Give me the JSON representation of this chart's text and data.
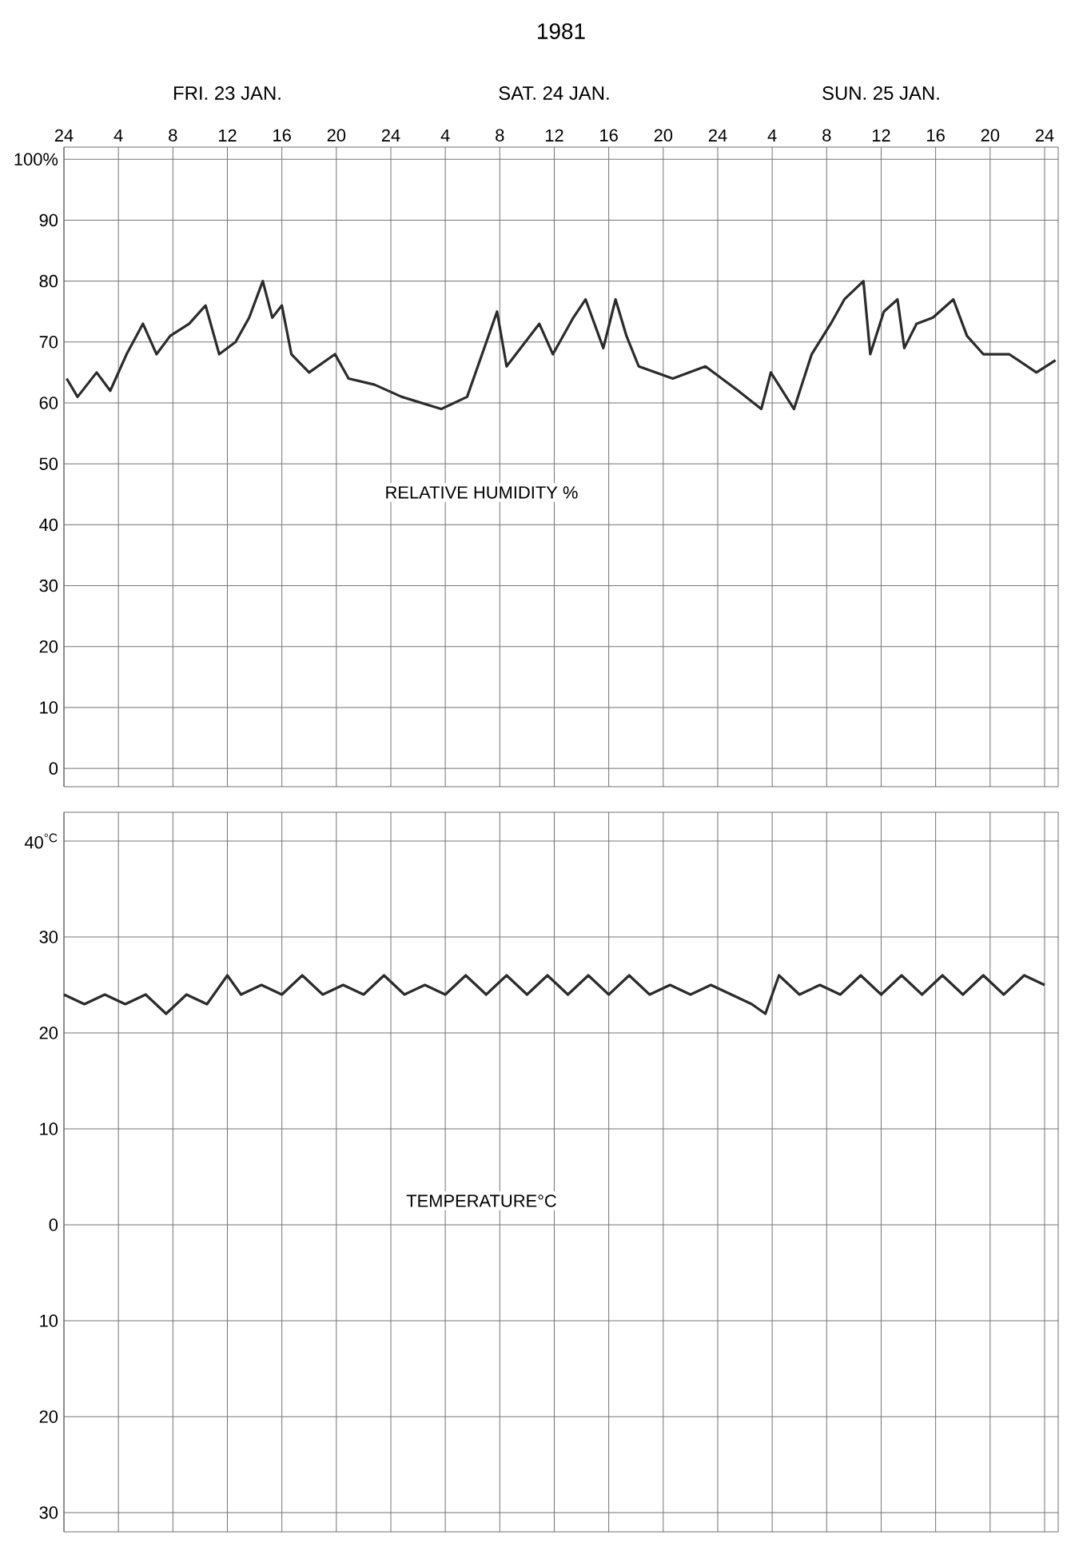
{
  "chart_data": [
    {
      "type": "line",
      "title": "1981",
      "annotations": [
        "RELATIVE HUMIDITY %"
      ],
      "xlim": [
        "1981-01-23T00:00",
        "1981-01-26T01:00"
      ],
      "xticks": [
        {
          "value": "1981-01-23T00:00",
          "label": "24"
        },
        {
          "value": "1981-01-23T04:00",
          "label": "4"
        },
        {
          "value": "1981-01-23T08:00",
          "label": "8"
        },
        {
          "value": "1981-01-23T12:00",
          "label": "12"
        },
        {
          "value": "1981-01-23T16:00",
          "label": "16"
        },
        {
          "value": "1981-01-23T20:00",
          "label": "20"
        },
        {
          "value": "1981-01-24T00:00",
          "label": "24"
        },
        {
          "value": "1981-01-24T04:00",
          "label": "4"
        },
        {
          "value": "1981-01-24T08:00",
          "label": "8"
        },
        {
          "value": "1981-01-24T12:00",
          "label": "12"
        },
        {
          "value": "1981-01-24T16:00",
          "label": "16"
        },
        {
          "value": "1981-01-24T20:00",
          "label": "20"
        },
        {
          "value": "1981-01-25T00:00",
          "label": "24"
        },
        {
          "value": "1981-01-25T04:00",
          "label": "4"
        },
        {
          "value": "1981-01-25T08:00",
          "label": "8"
        },
        {
          "value": "1981-01-25T12:00",
          "label": "12"
        },
        {
          "value": "1981-01-25T16:00",
          "label": "16"
        },
        {
          "value": "1981-01-25T20:00",
          "label": "20"
        },
        {
          "value": "1981-01-26T00:00",
          "label": "24"
        }
      ],
      "x2lim": [
        "1981-01-23T00:00",
        "1981-01-26T01:00"
      ],
      "x2ticks": [
        {
          "value": "1981-01-23T12:00",
          "label": "FRI. 23  JAN."
        },
        {
          "value": "1981-01-24T12:00",
          "label": "SAT. 24  JAN."
        },
        {
          "value": "1981-01-25T12:00",
          "label": "SUN. 25  JAN."
        }
      ],
      "ylim": [
        -3,
        102
      ],
      "yticks": [
        0,
        10,
        20,
        30,
        40,
        50,
        60,
        70,
        80,
        90,
        {
          "value": 100,
          "label": "100%"
        }
      ],
      "grid": true,
      "line_style": "solid",
      "series": [
        {
          "color": "#2b2b2b",
          "x": [
            "1981-01-23T00:12",
            "1981-01-23T01:00",
            "1981-01-23T02:24",
            "1981-01-23T03:24",
            "1981-01-23T04:36",
            "1981-01-23T05:48",
            "1981-01-23T06:48",
            "1981-01-23T07:48",
            "1981-01-23T09:12",
            "1981-01-23T10:24",
            "1981-01-23T11:24",
            "1981-01-23T12:36",
            "1981-01-23T13:36",
            "1981-01-23T14:36",
            "1981-01-23T15:18",
            "1981-01-23T16:00",
            "1981-01-23T16:42",
            "1981-01-23T18:00",
            "1981-01-23T19:54",
            "1981-01-23T20:54",
            "1981-01-23T22:48",
            "1981-01-24T00:48",
            "1981-01-24T03:42",
            "1981-01-24T05:36",
            "1981-01-24T07:48",
            "1981-01-24T08:30",
            "1981-01-24T10:54",
            "1981-01-24T11:54",
            "1981-01-24T13:24",
            "1981-01-24T14:18",
            "1981-01-24T15:36",
            "1981-01-24T16:30",
            "1981-01-24T17:18",
            "1981-01-24T18:12",
            "1981-01-24T20:42",
            "1981-01-24T23:06",
            "1981-01-25T01:30",
            "1981-01-25T03:12",
            "1981-01-25T03:54",
            "1981-01-25T05:36",
            "1981-01-25T06:54",
            "1981-01-25T08:18",
            "1981-01-25T09:18",
            "1981-01-25T10:42",
            "1981-01-25T11:12",
            "1981-01-25T12:12",
            "1981-01-25T13:12",
            "1981-01-25T13:42",
            "1981-01-25T14:36",
            "1981-01-25T15:48",
            "1981-01-25T17:18",
            "1981-01-25T18:18",
            "1981-01-25T19:30",
            "1981-01-25T21:24",
            "1981-01-25T23:24",
            "1981-01-26T00:48"
          ],
          "values": [
            64,
            61,
            65,
            62,
            68,
            73,
            68,
            71,
            73,
            76,
            68,
            70,
            74,
            80,
            74,
            76,
            68,
            65,
            68,
            64,
            63,
            61,
            59,
            61,
            75,
            66,
            73,
            68,
            74,
            77,
            69,
            77,
            71,
            66,
            64,
            66,
            62,
            59,
            65,
            59,
            68,
            73,
            77,
            80,
            68,
            75,
            77,
            69,
            73,
            74,
            77,
            71,
            68,
            68,
            65,
            67
          ]
        }
      ]
    },
    {
      "type": "line",
      "annotations": [
        "TEMPERATURE°C"
      ],
      "xlim": [
        "1981-01-23T00:00",
        "1981-01-26T01:00"
      ],
      "xticks": [
        "1981-01-23T00:00",
        "1981-01-23T04:00",
        "1981-01-23T08:00",
        "1981-01-23T12:00",
        "1981-01-23T16:00",
        "1981-01-23T20:00",
        "1981-01-24T00:00",
        "1981-01-24T04:00",
        "1981-01-24T08:00",
        "1981-01-24T12:00",
        "1981-01-24T16:00",
        "1981-01-24T20:00",
        "1981-01-25T00:00",
        "1981-01-25T04:00",
        "1981-01-25T08:00",
        "1981-01-25T12:00",
        "1981-01-25T16:00",
        "1981-01-25T20:00",
        "1981-01-26T00:00"
      ],
      "tick_labels": "y",
      "ylim": [
        -32,
        43
      ],
      "yticks": [
        {
          "value": -30,
          "label": "30"
        },
        {
          "value": -20,
          "label": "20"
        },
        {
          "value": -10,
          "label": "10"
        },
        0,
        10,
        20,
        30,
        {
          "value": 40,
          "label": "40$^{°C}$"
        }
      ],
      "grid": true,
      "line_style": "solid",
      "series": [
        {
          "color": "#2b2b2b",
          "x": [
            "1981-01-23T00:00",
            "1981-01-23T01:30",
            "1981-01-23T03:00",
            "1981-01-23T04:30",
            "1981-01-23T06:00",
            "1981-01-23T07:30",
            "1981-01-23T09:00",
            "1981-01-23T10:30",
            "1981-01-23T12:00",
            "1981-01-23T13:00",
            "1981-01-23T14:30",
            "1981-01-23T16:00",
            "1981-01-23T17:30",
            "1981-01-23T19:00",
            "1981-01-23T20:30",
            "1981-01-23T22:00",
            "1981-01-23T23:30",
            "1981-01-24T01:00",
            "1981-01-24T02:30",
            "1981-01-24T04:00",
            "1981-01-24T05:30",
            "1981-01-24T07:00",
            "1981-01-24T08:30",
            "1981-01-24T10:00",
            "1981-01-24T11:30",
            "1981-01-24T13:00",
            "1981-01-24T14:30",
            "1981-01-24T16:00",
            "1981-01-24T17:30",
            "1981-01-24T19:00",
            "1981-01-24T20:30",
            "1981-01-24T22:00",
            "1981-01-24T23:30",
            "1981-01-25T01:00",
            "1981-01-25T02:30",
            "1981-01-25T03:30",
            "1981-01-25T04:30",
            "1981-01-25T06:00",
            "1981-01-25T07:30",
            "1981-01-25T09:00",
            "1981-01-25T10:30",
            "1981-01-25T12:00",
            "1981-01-25T13:30",
            "1981-01-25T15:00",
            "1981-01-25T16:30",
            "1981-01-25T18:00",
            "1981-01-25T19:30",
            "1981-01-25T21:00",
            "1981-01-25T22:30",
            "1981-01-26T00:00"
          ],
          "values": [
            24,
            23,
            24,
            23,
            24,
            22,
            24,
            23,
            26,
            24,
            25,
            24,
            26,
            24,
            25,
            24,
            26,
            24,
            25,
            24,
            26,
            24,
            26,
            24,
            26,
            24,
            26,
            24,
            26,
            24,
            25,
            24,
            25,
            24,
            23,
            22,
            26,
            24,
            25,
            24,
            26,
            24,
            26,
            24,
            26,
            24,
            26,
            24,
            26,
            25
          ]
        }
      ]
    }
  ]
}
